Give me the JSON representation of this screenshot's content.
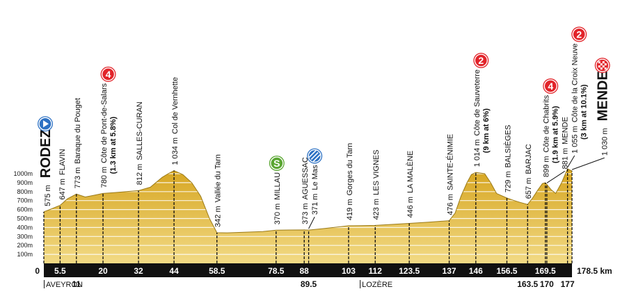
{
  "chart_data": {
    "type": "area",
    "color": "#e0b437",
    "grid": true,
    "x": [
      0,
      2,
      5.5,
      8,
      11,
      14,
      17,
      20,
      24,
      28,
      32,
      36,
      40,
      42,
      44,
      47,
      50,
      53,
      56,
      58.5,
      62,
      66,
      70,
      74,
      78.5,
      83,
      88,
      89.5,
      95,
      103,
      107,
      112,
      118,
      123.5,
      130,
      137,
      139,
      141,
      143,
      144.5,
      146,
      149,
      151,
      153,
      156.5,
      159,
      161,
      163.5,
      165,
      167,
      168.5,
      169.5,
      170,
      171.5,
      173,
      175,
      177,
      178.5
    ],
    "values": [
      575,
      600,
      647,
      720,
      773,
      740,
      760,
      780,
      790,
      800,
      812,
      850,
      960,
      1000,
      1034,
      990,
      900,
      750,
      500,
      342,
      340,
      345,
      350,
      355,
      370,
      372,
      373,
      371,
      390,
      419,
      420,
      423,
      435,
      446,
      460,
      476,
      560,
      750,
      900,
      990,
      1014,
      1000,
      900,
      780,
      729,
      700,
      680,
      657,
      720,
      820,
      890,
      899,
      881,
      820,
      780,
      900,
      1055,
      1030
    ],
    "xlim": [
      0,
      178.5
    ],
    "ylim": [
      0,
      1000
    ],
    "xticks": [
      0,
      5.5,
      11,
      20,
      32,
      44,
      58.5,
      78.5,
      88,
      89.5,
      103,
      112,
      123.5,
      137,
      146,
      156.5,
      163.5,
      169.5,
      170,
      177,
      {
        "value": 178.5,
        "label": "178.5 km"
      }
    ],
    "yticks": [
      {
        "value": 100,
        "label": "100m"
      },
      {
        "value": 200,
        "label": "200m"
      },
      {
        "value": 300,
        "label": "300m"
      },
      {
        "value": 400,
        "label": "400m"
      },
      {
        "value": 500,
        "label": "500m"
      },
      {
        "value": 600,
        "label": "600m"
      },
      {
        "value": 700,
        "label": "700m"
      },
      {
        "value": 800,
        "label": "800m"
      },
      {
        "value": 900,
        "label": "900m"
      },
      {
        "value": 1000,
        "label": "1000m"
      }
    ],
    "waypoints": {
      "x": [
        0,
        5.5,
        11,
        20,
        32,
        44,
        58.5,
        78.5,
        88,
        89.5,
        103,
        112,
        123.5,
        137,
        146,
        156.5,
        163.5,
        169.5,
        170,
        177,
        178.5
      ],
      "values": [
        575,
        647,
        773,
        780,
        812,
        1034,
        342,
        370,
        373,
        371,
        419,
        423,
        446,
        476,
        1014,
        729,
        657,
        899,
        881,
        1055,
        1030
      ],
      "value_labels": [
        "575 m",
        "647 m",
        "773 m",
        "780 m",
        "812 m",
        "1 034 m",
        "342 m",
        "370 m",
        "373 m",
        "371 m",
        "419 m",
        "423 m",
        "446 m",
        "476 m",
        "1 014 m",
        "729 m",
        "657 m",
        "899 m",
        "881 m",
        "1 055 m",
        "1 030 m"
      ],
      "names": [
        "RODEZ",
        "FLAVIN",
        "Baraque du Pouget",
        "Côte de Pont-de-Salars",
        "SALLES-CURAN",
        "Col de Vernhette",
        "Vallée du Tarn",
        "MILLAU",
        "AGUESSAC",
        "Le Mas",
        "Gorges du Tarn",
        "LES VIGNES",
        "LA MALÈNE",
        "SAINTE-ÉNIMIE",
        "Côte de Sauveterre",
        "BALSIÈGES",
        "BARJAC",
        "Côte de Chabrits",
        "MENDE",
        "Côte de la Croix Neuve",
        "MENDE"
      ],
      "details": [
        null,
        null,
        null,
        "(1.3 km at 5.8%)",
        null,
        null,
        null,
        null,
        null,
        null,
        null,
        null,
        null,
        null,
        "(9 km at 6%)",
        null,
        null,
        "(1.9 km at 5.9%)",
        null,
        "(3 km at 10.1%)",
        null
      ],
      "badges": [
        null,
        null,
        null,
        "4",
        null,
        null,
        null,
        "S",
        null,
        null,
        null,
        null,
        null,
        null,
        "2",
        null,
        null,
        "4",
        null,
        "2",
        null
      ],
      "icons": [
        "start",
        null,
        null,
        "climb",
        null,
        null,
        null,
        "sprint",
        null,
        "feed",
        null,
        null,
        null,
        null,
        "climb",
        null,
        null,
        "climb",
        null,
        "climb",
        "finish"
      ]
    },
    "regions": {
      "names": [
        "AVEYRON",
        "LOZÈRE"
      ],
      "x": [
        0,
        106.8
      ]
    }
  }
}
